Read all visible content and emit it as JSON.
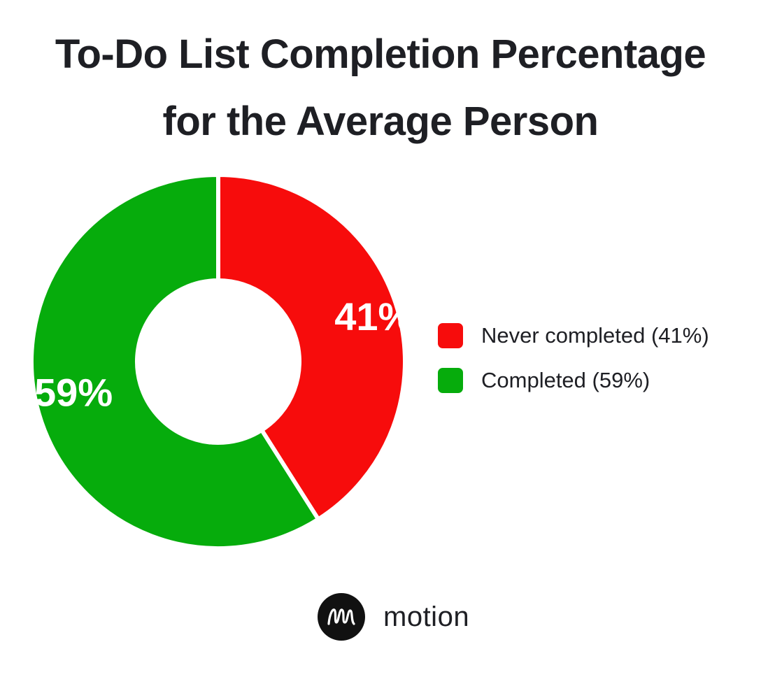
{
  "chart_data": {
    "type": "pie",
    "variant": "donut",
    "title": "To-Do List Completion Percentage for the Average Person",
    "title_lines": [
      "To-Do List Completion Percentage",
      "for the Average Person"
    ],
    "categories": [
      "Never completed",
      "Completed"
    ],
    "values": [
      41,
      59
    ],
    "unit": "%",
    "data_labels": [
      "41%",
      "59%"
    ],
    "colors": [
      "#f70c0c",
      "#06ac0c"
    ],
    "legend": {
      "position": "right",
      "entries": [
        "Never completed (41%)",
        "Completed (59%)"
      ]
    },
    "start_angle_deg": 0,
    "direction": "clockwise"
  },
  "brand": {
    "name": "motion",
    "logo_icon": "motion-logo-icon"
  }
}
